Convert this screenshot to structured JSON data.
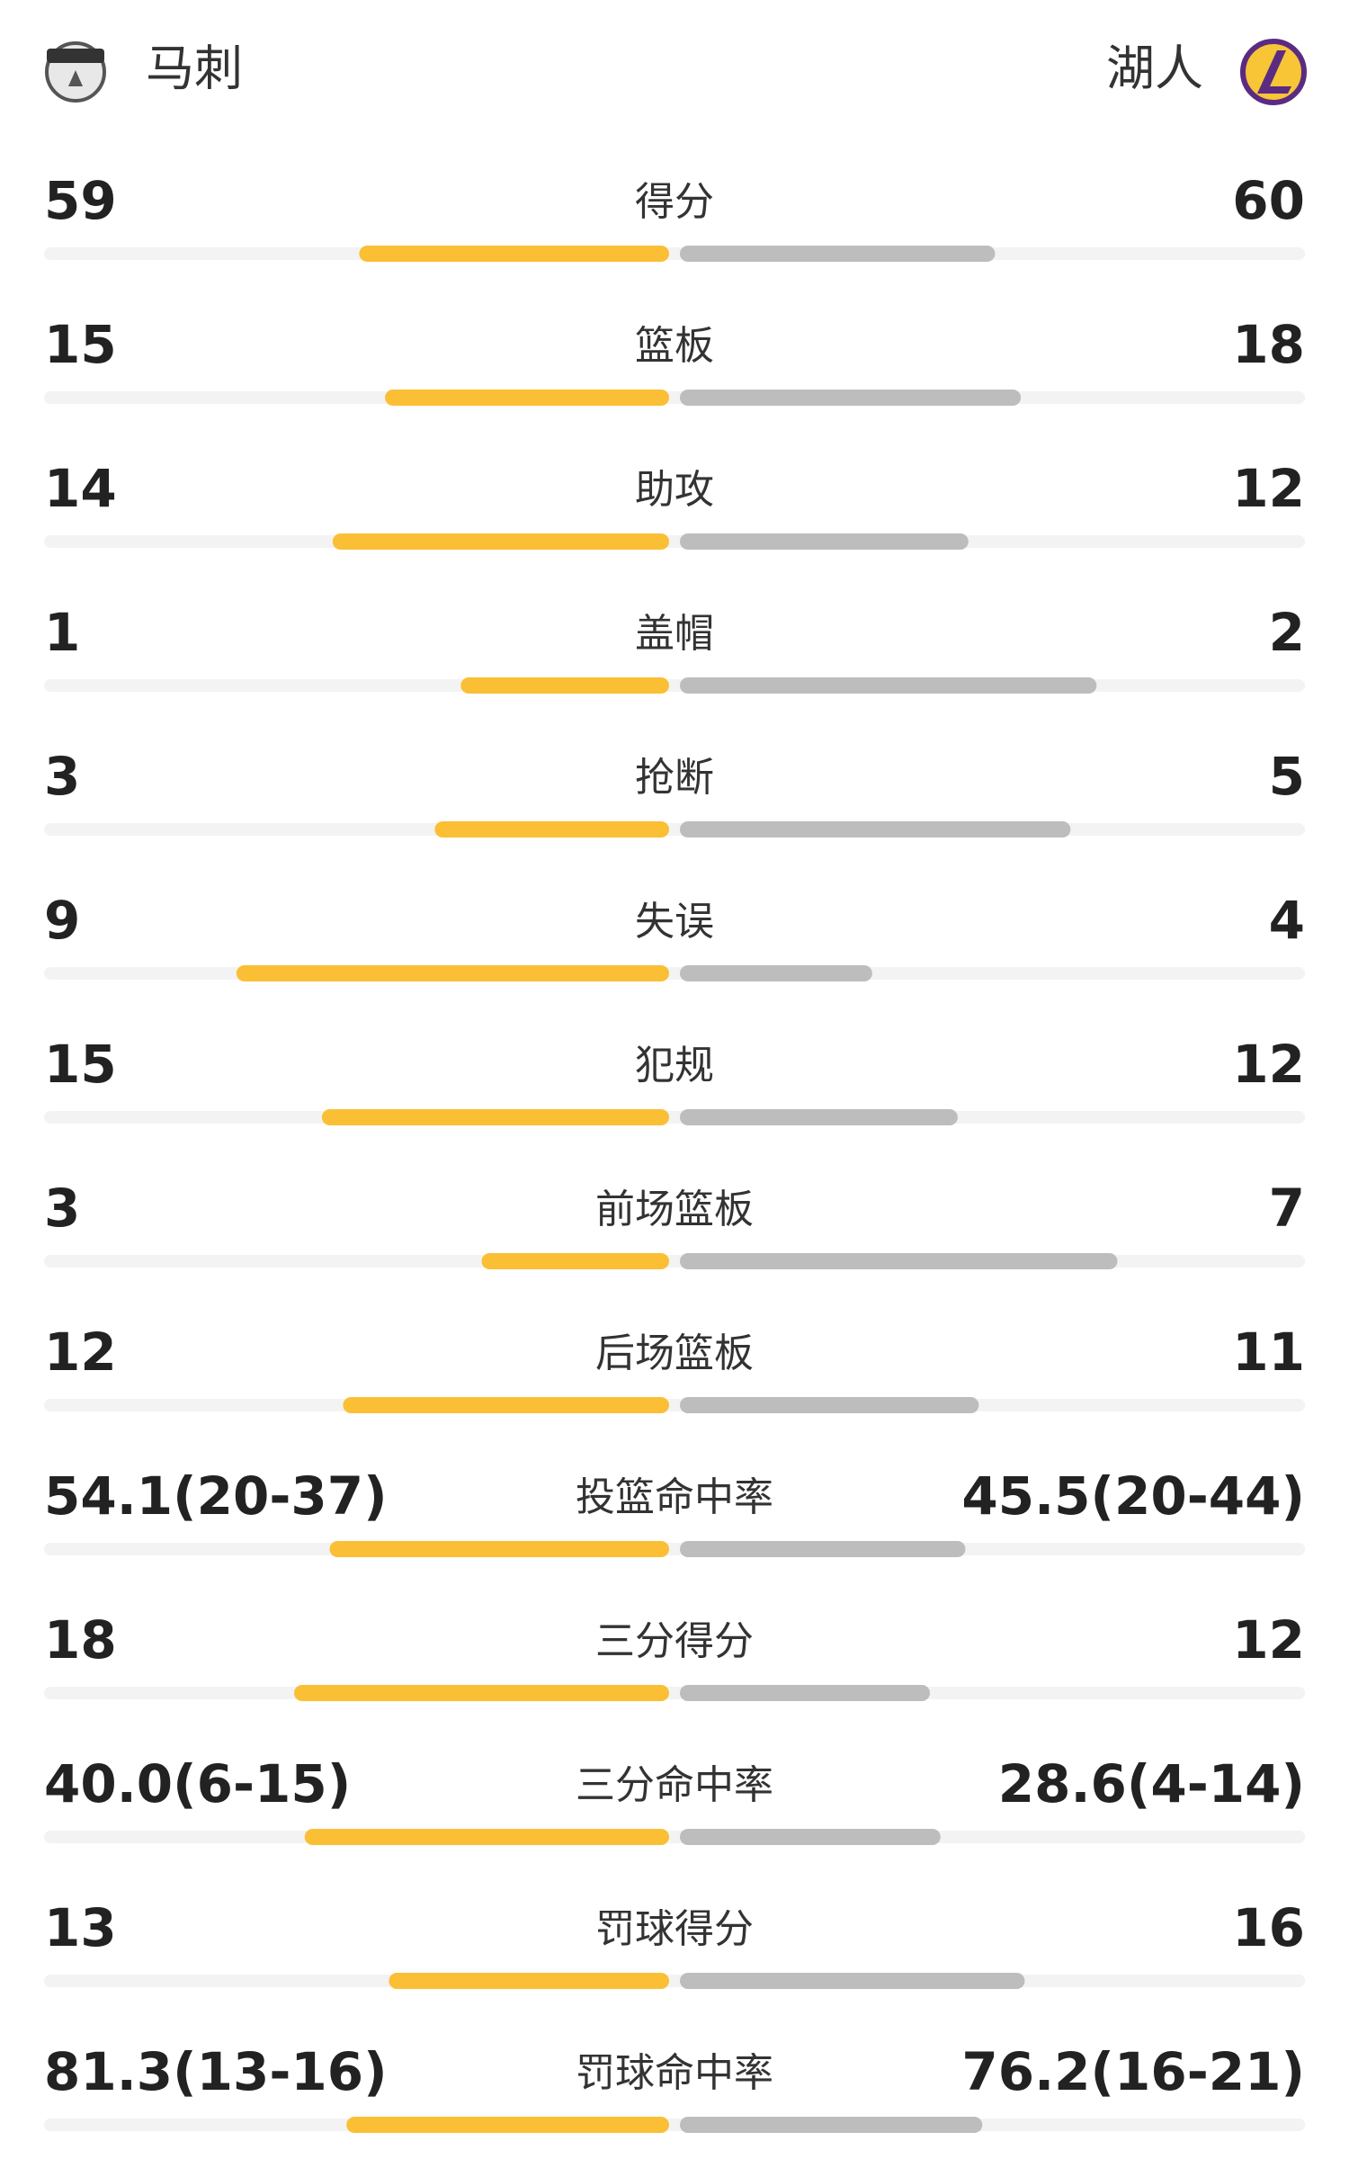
{
  "home": {
    "name": "马刺"
  },
  "away": {
    "name": "湖人"
  },
  "stats": [
    {
      "label": "得分",
      "home": 59,
      "away": 60
    },
    {
      "label": "篮板",
      "home": 15,
      "away": 18
    },
    {
      "label": "助攻",
      "home": 14,
      "away": 12
    },
    {
      "label": "盖帽",
      "home": 1,
      "away": 2
    },
    {
      "label": "抢断",
      "home": 3,
      "away": 5
    },
    {
      "label": "失误",
      "home": 9,
      "away": 4
    },
    {
      "label": "犯规",
      "home": 15,
      "away": 12
    },
    {
      "label": "前场篮板",
      "home": 3,
      "away": 7
    },
    {
      "label": "后场篮板",
      "home": 12,
      "away": 11
    },
    {
      "label": "投篮命中率",
      "home": 54.1,
      "home_label": "54.1(20-37)",
      "away": 45.5,
      "away_label": "45.5(20-44)"
    },
    {
      "label": "三分得分",
      "home": 18,
      "away": 12
    },
    {
      "label": "三分命中率",
      "home": 40.0,
      "home_label": "40.0(6-15)",
      "away": 28.6,
      "away_label": "28.6(4-14)"
    },
    {
      "label": "罚球得分",
      "home": 13,
      "away": 16
    },
    {
      "label": "罚球命中率",
      "home": 81.3,
      "home_label": "81.3(13-16)",
      "away": 76.2,
      "away_label": "76.2(16-21)"
    }
  ]
}
